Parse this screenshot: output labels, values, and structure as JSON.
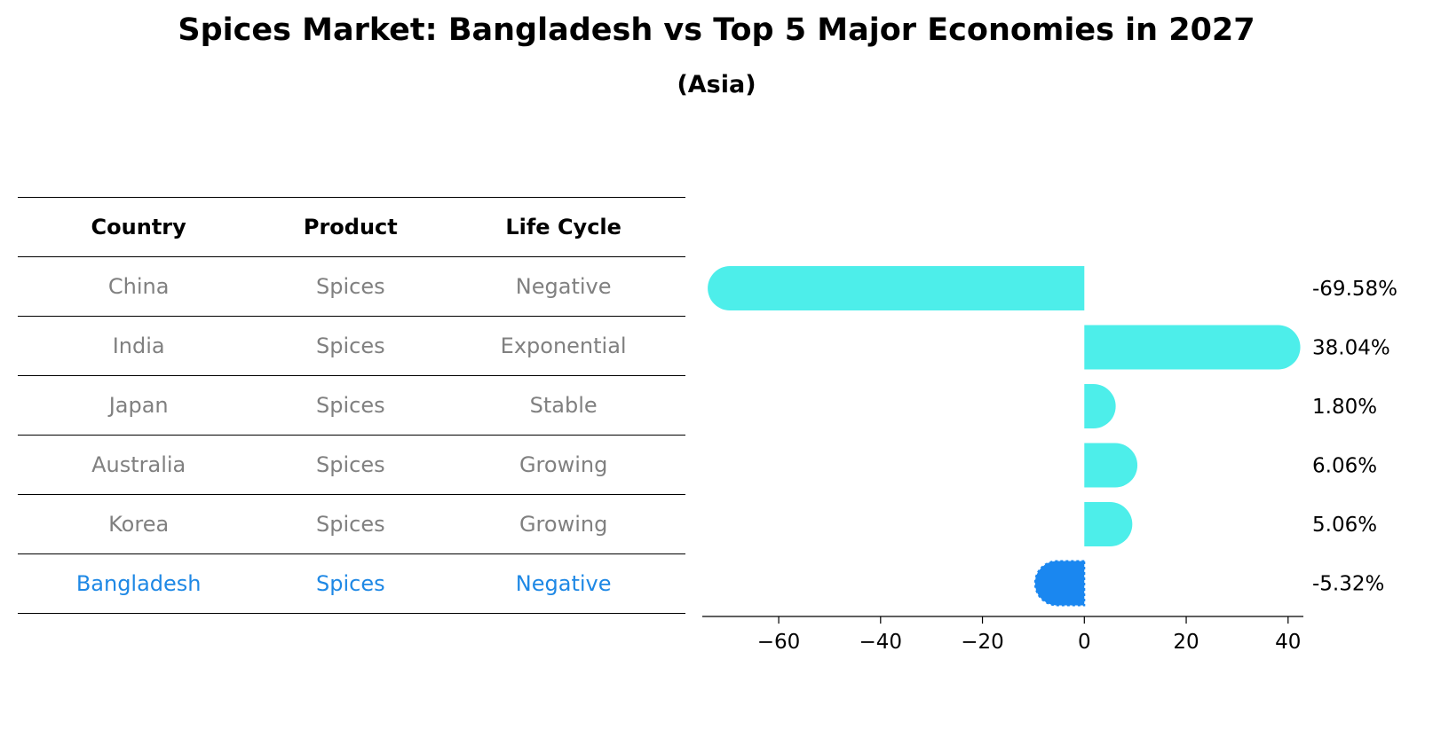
{
  "chart_data": {
    "type": "bar",
    "orientation": "horizontal",
    "title": "Spices Market: Bangladesh vs Top 5 Major Economies in 2027",
    "subtitle": "(Asia)",
    "categories": [
      "China",
      "India",
      "Japan",
      "Australia",
      "Korea",
      "Bangladesh"
    ],
    "values": [
      -69.58,
      38.04,
      1.8,
      6.06,
      5.06,
      -5.32
    ],
    "value_labels": [
      "-69.58%",
      "38.04%",
      "1.80%",
      "6.06%",
      "5.06%",
      "-5.32%"
    ],
    "highlight": "Bangladesh",
    "xlim": [
      -75,
      43
    ],
    "xticks": [
      -60,
      -40,
      -20,
      0,
      20,
      40
    ],
    "xtick_labels": [
      "−60",
      "−40",
      "−20",
      "0",
      "20",
      "40"
    ],
    "colors": {
      "default": "#4deeea",
      "highlight": "#1a87f0",
      "table_text": "#808080",
      "table_highlight_text": "#1e88e5"
    }
  },
  "table": {
    "headers": [
      "Country",
      "Product",
      "Life Cycle"
    ],
    "rows": [
      {
        "country": "China",
        "product": "Spices",
        "life_cycle": "Negative"
      },
      {
        "country": "India",
        "product": "Spices",
        "life_cycle": "Exponential"
      },
      {
        "country": "Japan",
        "product": "Spices",
        "life_cycle": "Stable"
      },
      {
        "country": "Australia",
        "product": "Spices",
        "life_cycle": "Growing"
      },
      {
        "country": "Korea",
        "product": "Spices",
        "life_cycle": "Growing"
      },
      {
        "country": "Bangladesh",
        "product": "Spices",
        "life_cycle": "Negative"
      }
    ]
  }
}
